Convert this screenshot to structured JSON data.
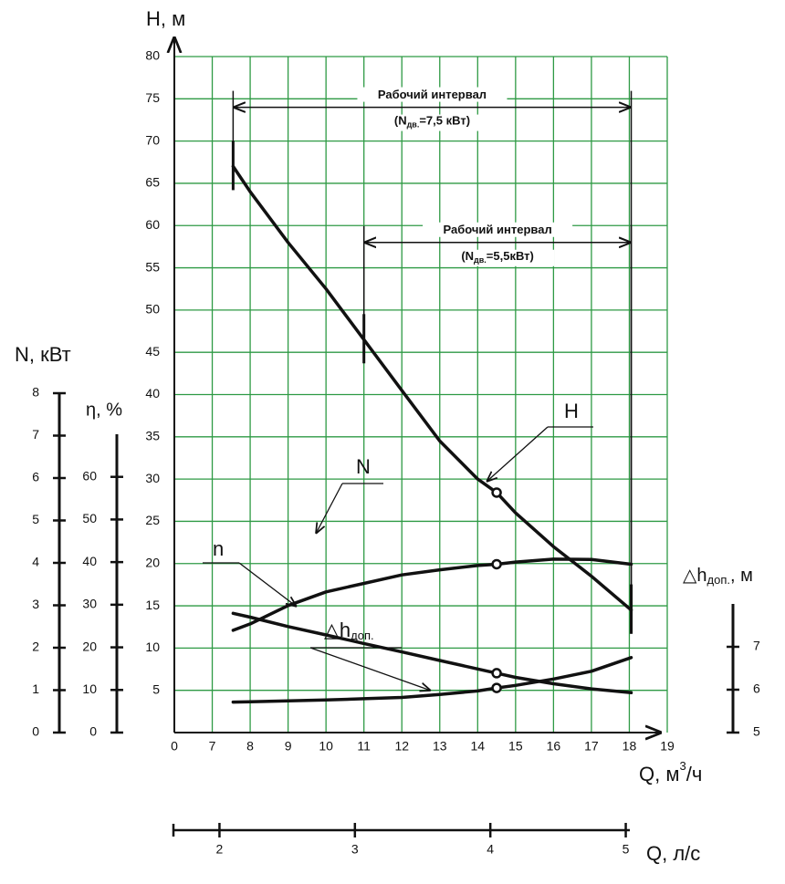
{
  "chart_data": {
    "type": "line",
    "x_label": {
      "text": "Q, м",
      "sup": "3",
      "end": "/ч"
    },
    "xlim": [
      0,
      19
    ],
    "xticks": [
      0,
      7,
      8,
      9,
      10,
      11,
      12,
      13,
      14,
      15,
      16,
      17,
      18,
      19
    ],
    "x2_label": "Q, л/с",
    "x2lim": [
      1.66,
      5.03
    ],
    "x2ticks": [
      2,
      3,
      4,
      5
    ],
    "grid": true,
    "grid_color": "#2e9a44",
    "axes": [
      {
        "id": "H",
        "label": "H, м",
        "ylim": [
          0,
          80
        ],
        "yticks": [
          5,
          10,
          15,
          20,
          25,
          30,
          35,
          40,
          45,
          50,
          55,
          60,
          65,
          70,
          75,
          80
        ]
      },
      {
        "id": "N",
        "label": "N, кВт",
        "ylim": [
          0,
          8
        ],
        "yticks": [
          0,
          1,
          2,
          3,
          4,
          5,
          6,
          7,
          8
        ]
      },
      {
        "id": "eta",
        "label": "η, %",
        "ylim": [
          0,
          70
        ],
        "yticks": [
          0,
          10,
          20,
          30,
          40,
          50,
          60
        ]
      },
      {
        "id": "dh",
        "label": "△h",
        "label_sub": "доп.",
        "label_end": ", м",
        "ylim": [
          5,
          8
        ],
        "yticks": [
          5,
          6,
          7
        ]
      }
    ],
    "x": [
      7.55,
      8,
      9,
      10,
      11,
      12,
      13,
      14,
      14.5,
      15,
      16,
      17,
      18.05
    ],
    "marker_x": 14.5,
    "series": [
      {
        "name": "H",
        "axis": "H",
        "color": "#111111",
        "values": [
          67,
          64,
          58,
          52.5,
          46.5,
          40.5,
          34.5,
          30,
          28.4,
          26,
          22,
          18.5,
          14.5
        ]
      },
      {
        "name": "N",
        "axis": "N",
        "color": "#111111",
        "values": [
          2.81,
          2.72,
          2.5,
          2.3,
          2.1,
          1.9,
          1.7,
          1.5,
          1.4,
          1.3,
          1.15,
          1.03,
          0.94
        ]
      },
      {
        "name": "n",
        "axis": "eta",
        "color": "#111111",
        "values": [
          24,
          25.5,
          29.8,
          33,
          35,
          37,
          38.2,
          39.2,
          39.5,
          40,
          40.7,
          40.6,
          39.5
        ]
      },
      {
        "name": "△h",
        "name_sub": "доп.",
        "axis": "dh",
        "color": "#111111",
        "values": [
          5.71,
          5.72,
          5.74,
          5.76,
          5.79,
          5.82,
          5.89,
          5.97,
          6.04,
          6.1,
          6.25,
          6.43,
          6.75
        ]
      }
    ],
    "intervals": [
      {
        "label": "Рабочий интервал",
        "note": "(N",
        "note_sub": "дв.",
        "note_end": "=7,5 кВт)",
        "from": 7.55,
        "to": 18.05,
        "h": 74
      },
      {
        "label": "Рабочий интервал",
        "note": "(N",
        "note_sub": "дв.",
        "note_end": "=5,5кВт)",
        "from": 11,
        "to": 18.05,
        "h": 58
      }
    ]
  }
}
